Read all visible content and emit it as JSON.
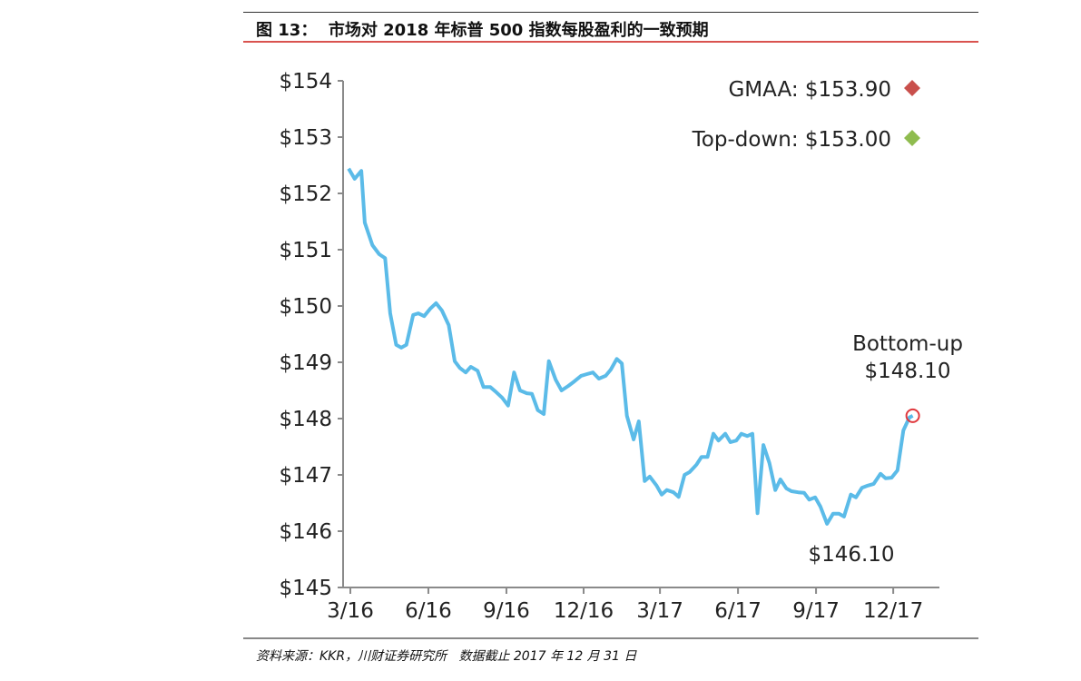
{
  "header": {
    "title": "图 13：  市场对 2018 年标普 500 指数每股盈利的一致预期"
  },
  "footer": {
    "source": "资料来源：KKR，川财证券研究所   数据截止 2017 年 12 月 31 日"
  },
  "chart_data": {
    "type": "line",
    "title": "",
    "xlabel": "",
    "ylabel": "",
    "ylim": [
      145,
      154
    ],
    "yticks": [
      "$145",
      "$146",
      "$147",
      "$148",
      "$149",
      "$150",
      "$151",
      "$152",
      "$153",
      "$154"
    ],
    "xticks": [
      {
        "label": "3/16",
        "date": "2016-03-01"
      },
      {
        "label": "6/16",
        "date": "2016-06-01"
      },
      {
        "label": "9/16",
        "date": "2016-09-01"
      },
      {
        "label": "12/16",
        "date": "2016-12-01"
      },
      {
        "label": "3/17",
        "date": "2017-03-01"
      },
      {
        "label": "6/17",
        "date": "2017-06-01"
      },
      {
        "label": "9/17",
        "date": "2017-09-01"
      },
      {
        "label": "12/17",
        "date": "2017-12-01"
      }
    ],
    "grid": false,
    "line_color": "#5bbbe8",
    "series": [
      {
        "x": [
          "2016-02-28",
          "2016-03-06",
          "2016-03-14",
          "2016-03-18",
          "2016-03-27",
          "2016-04-04",
          "2016-04-11",
          "2016-04-17",
          "2016-04-24",
          "2016-04-30",
          "2016-05-06",
          "2016-05-14",
          "2016-05-20",
          "2016-05-27",
          "2016-06-03",
          "2016-06-10",
          "2016-06-17",
          "2016-06-25",
          "2016-07-02",
          "2016-07-08",
          "2016-07-15",
          "2016-07-21",
          "2016-07-29",
          "2016-08-05",
          "2016-08-13",
          "2016-08-20",
          "2016-08-27",
          "2016-09-03",
          "2016-09-10",
          "2016-09-17",
          "2016-09-25",
          "2016-10-01",
          "2016-10-08",
          "2016-10-15",
          "2016-10-21",
          "2016-10-29",
          "2016-11-05",
          "2016-11-13",
          "2016-11-20",
          "2016-11-28",
          "2016-12-05",
          "2016-12-12",
          "2016-12-19",
          "2016-12-27",
          "2017-01-02",
          "2017-01-09",
          "2017-01-15",
          "2017-01-21",
          "2017-01-29",
          "2017-02-04",
          "2017-02-11",
          "2017-02-17",
          "2017-02-25",
          "2017-03-03",
          "2017-03-09",
          "2017-03-17",
          "2017-03-23",
          "2017-03-30",
          "2017-04-05",
          "2017-04-13",
          "2017-04-19",
          "2017-04-26",
          "2017-05-03",
          "2017-05-09",
          "2017-05-17",
          "2017-05-23",
          "2017-05-30",
          "2017-06-05",
          "2017-06-12",
          "2017-06-18",
          "2017-06-24",
          "2017-07-01",
          "2017-07-08",
          "2017-07-15",
          "2017-07-21",
          "2017-07-28",
          "2017-08-03",
          "2017-08-11",
          "2017-08-18",
          "2017-08-24",
          "2017-08-31",
          "2017-09-06",
          "2017-09-14",
          "2017-09-21",
          "2017-09-28",
          "2017-10-04",
          "2017-10-12",
          "2017-10-18",
          "2017-10-25",
          "2017-11-01",
          "2017-11-08",
          "2017-11-16",
          "2017-11-22",
          "2017-11-29",
          "2017-12-06",
          "2017-12-13",
          "2017-12-20",
          "2017-12-24"
        ],
        "y": [
          152.44,
          152.26,
          152.4,
          151.48,
          151.08,
          150.92,
          150.85,
          149.87,
          149.31,
          149.26,
          149.31,
          149.84,
          149.87,
          149.82,
          149.95,
          150.05,
          149.92,
          149.66,
          149.02,
          148.9,
          148.82,
          148.92,
          148.85,
          148.56,
          148.56,
          148.47,
          148.37,
          148.23,
          148.82,
          148.5,
          148.45,
          148.44,
          148.15,
          148.08,
          149.02,
          148.69,
          148.5,
          148.58,
          148.66,
          148.76,
          148.79,
          148.82,
          148.71,
          148.76,
          148.87,
          149.06,
          148.98,
          148.05,
          147.63,
          147.95,
          146.89,
          146.97,
          146.81,
          146.65,
          146.73,
          146.69,
          146.61,
          147.0,
          147.05,
          147.18,
          147.32,
          147.32,
          147.73,
          147.61,
          147.73,
          147.58,
          147.61,
          147.73,
          147.69,
          147.73,
          146.32,
          147.53,
          147.21,
          146.73,
          146.92,
          146.76,
          146.71,
          146.69,
          146.68,
          146.56,
          146.6,
          146.44,
          146.13,
          146.31,
          146.31,
          146.26,
          146.65,
          146.6,
          146.77,
          146.81,
          146.84,
          147.02,
          146.94,
          146.95,
          147.08,
          147.79,
          148.02,
          148.05
        ]
      }
    ],
    "annotations": [
      {
        "label": "GMAA: $153.90",
        "value": 153.9,
        "marker": "diamond",
        "color": "#c9504c"
      },
      {
        "label": "Top-down: $153.00",
        "value": 153.0,
        "marker": "diamond",
        "color": "#8fbc4f"
      },
      {
        "label_line1": "Bottom-up",
        "label_line2": "$148.10",
        "value": 148.1,
        "marker": "circle",
        "color": "#e0393e"
      },
      {
        "label": "$146.10",
        "value": 146.1
      }
    ],
    "legend": "top-right"
  }
}
